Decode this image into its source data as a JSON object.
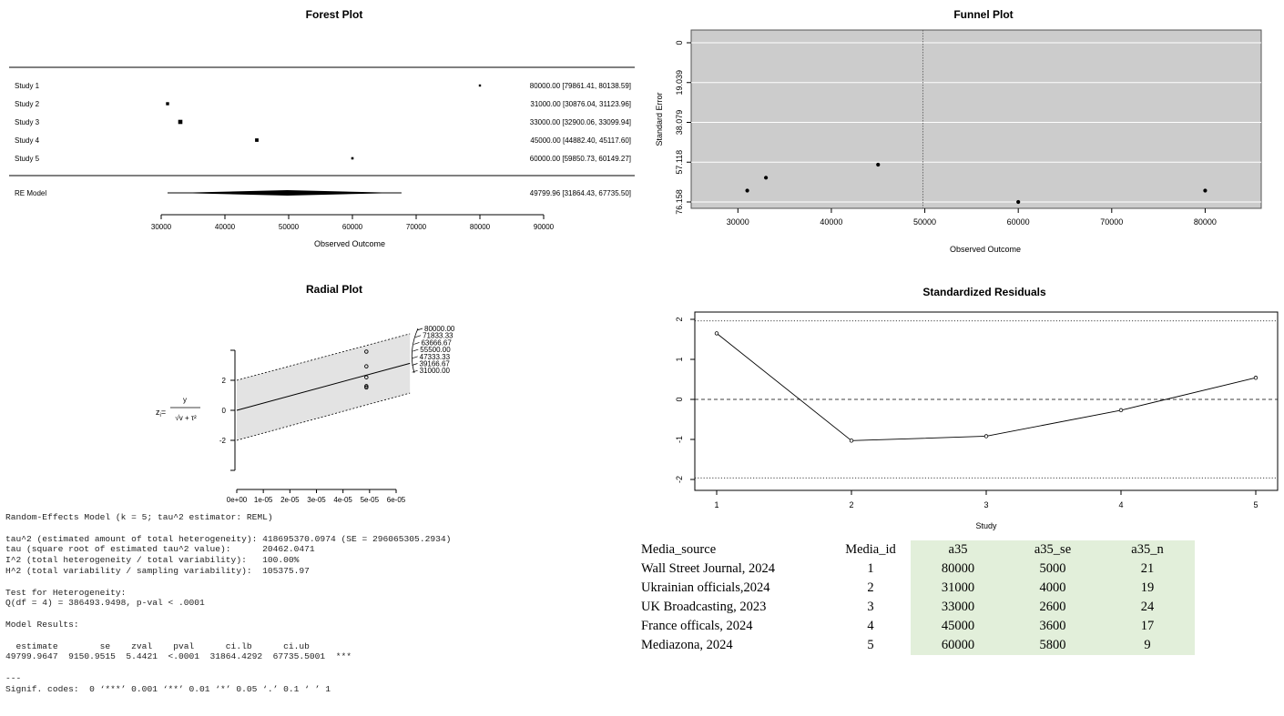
{
  "forest": {
    "title": "Forest Plot",
    "xlabel": "Observed Outcome",
    "ticks": [
      "30000",
      "40000",
      "50000",
      "60000",
      "70000",
      "80000",
      "90000"
    ],
    "studies": [
      {
        "label": "Study 1",
        "text": "80000.00 [79861.41, 80138.59]"
      },
      {
        "label": "Study 2",
        "text": "31000.00 [30876.04, 31123.96]"
      },
      {
        "label": "Study 3",
        "text": "33000.00 [32900.06, 33099.94]"
      },
      {
        "label": "Study 4",
        "text": "45000.00 [44882.40, 45117.60]"
      },
      {
        "label": "Study 5",
        "text": "60000.00 [59850.73, 60149.27]"
      }
    ],
    "model_label": "RE Model",
    "model_text": "49799.96 [31864.43, 67735.50]"
  },
  "funnel": {
    "title": "Funnel Plot",
    "xlabel": "Observed Outcome",
    "ylabel": "Standard Error",
    "xticks": [
      "30000",
      "40000",
      "50000",
      "60000",
      "70000",
      "80000"
    ],
    "yticks": [
      "0",
      "19.039",
      "38.079",
      "57.118",
      "76.158"
    ]
  },
  "radial": {
    "title": "Radial Plot",
    "ylabel_main": "z",
    "ylabel_sub": "i",
    "ylabel_num": "y",
    "ylabel_den": "√v + τ²",
    "yticks": [
      "2",
      "0",
      "-2"
    ],
    "xticks": [
      "0e+00",
      "1e-05",
      "2e-05",
      "3e-05",
      "4e-05",
      "5e-05",
      "6e-05"
    ],
    "arc_labels": [
      "80000.00",
      "71833.33",
      "63666.67",
      "55500.00",
      "47333.33",
      "39166.67",
      "31000.00"
    ]
  },
  "residuals": {
    "title": "Standardized Residuals",
    "xlabel": "Study",
    "xticks": [
      "1",
      "2",
      "3",
      "4",
      "5"
    ],
    "yticks": [
      "2",
      "1",
      "0",
      "-1",
      "-2"
    ]
  },
  "r_output": [
    "Random-Effects Model (k = 5; tau^2 estimator: REML)",
    "",
    "tau^2 (estimated amount of total heterogeneity): 418695370.0974 (SE = 296065305.2934)",
    "tau (square root of estimated tau^2 value):      20462.0471",
    "I^2 (total heterogeneity / total variability):   100.00%",
    "H^2 (total variability / sampling variability):  105375.97",
    "",
    "Test for Heterogeneity:",
    "Q(df = 4) = 386493.9498, p-val < .0001",
    "",
    "Model Results:",
    "",
    "  estimate        se    zval    pval      ci.lb      ci.ub",
    "49799.9647  9150.9515  5.4421  <.0001  31864.4292  67735.5001  ***",
    "",
    "---",
    "Signif. codes:  0 ‘***’ 0.001 ‘**’ 0.01 ‘*’ 0.05 ‘.’ 0.1 ‘ ’ 1"
  ],
  "table": {
    "headers": [
      "Media_source",
      "Media_id",
      "a35",
      "a35_se",
      "a35_n"
    ],
    "rows": [
      [
        "Wall Street Journal, 2024",
        "1",
        "80000",
        "5000",
        "21"
      ],
      [
        "Ukrainian officials,2024",
        "2",
        "31000",
        "4000",
        "19"
      ],
      [
        "UK Broadcasting, 2023",
        "3",
        "33000",
        "2600",
        "24"
      ],
      [
        "France officals, 2024",
        "4",
        "45000",
        "3600",
        "17"
      ],
      [
        "Mediazona, 2024",
        "5",
        "60000",
        "5800",
        "9"
      ]
    ]
  },
  "chart_data": [
    {
      "type": "scatter",
      "title": "Forest Plot",
      "xlabel": "Observed Outcome",
      "xlim": [
        30000,
        90000
      ],
      "categories": [
        "Study 1",
        "Study 2",
        "Study 3",
        "Study 4",
        "Study 5"
      ],
      "estimates": [
        80000,
        31000,
        33000,
        45000,
        60000
      ],
      "ci_lb": [
        79861.41,
        30876.04,
        32900.06,
        44882.4,
        59850.73
      ],
      "ci_ub": [
        80138.59,
        31123.96,
        33099.94,
        45117.6,
        60149.27
      ],
      "model": {
        "estimate": 49799.96,
        "ci_lb": 31864.43,
        "ci_ub": 67735.5,
        "pi_lb": 31000,
        "pi_ub": 67700
      }
    },
    {
      "type": "scatter",
      "title": "Funnel Plot",
      "xlabel": "Observed Outcome",
      "ylabel": "Standard Error",
      "xlim": [
        25000,
        86000
      ],
      "ylim": [
        76.158,
        0
      ],
      "center": 49799.96,
      "x": [
        80000,
        31000,
        33000,
        45000,
        60000
      ],
      "y": [
        70.71,
        70.71,
        64.55,
        58.31,
        76.16
      ]
    },
    {
      "type": "scatter",
      "title": "Radial Plot",
      "xlim": [
        0,
        6e-05
      ],
      "ylim": [
        -4,
        4
      ],
      "x": [
        4.88e-05,
        4.88e-05,
        4.88e-05,
        4.88e-05,
        4.88e-05
      ],
      "y": [
        3.91,
        1.52,
        1.61,
        2.2,
        2.93
      ]
    },
    {
      "type": "line",
      "title": "Standardized Residuals",
      "xlabel": "Study",
      "x": [
        1,
        2,
        3,
        4,
        5
      ],
      "y": [
        1.65,
        -1.03,
        -0.92,
        -0.27,
        0.54
      ],
      "ylim": [
        -2.2,
        2.2
      ],
      "reference_lines": [
        -1.96,
        0,
        1.96
      ]
    }
  ]
}
